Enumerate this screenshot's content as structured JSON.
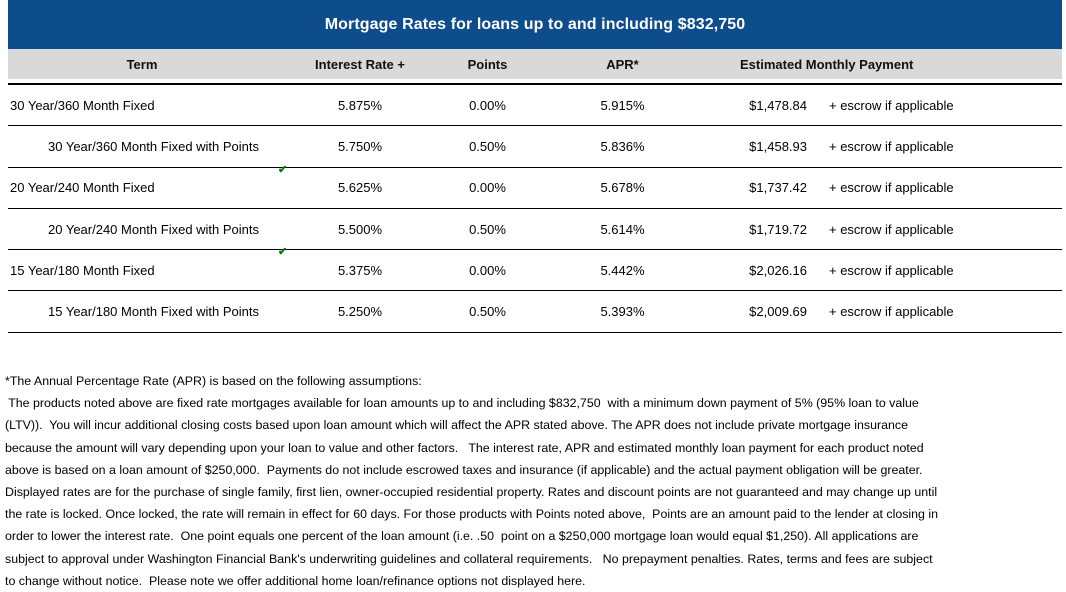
{
  "title": "Mortgage Rates for loans up to and including $832,750",
  "colors": {
    "title_bar": "#0E4D8C",
    "title_text": "#FFFFFF",
    "header_row": "#D9D9D9",
    "grid_lines": "#000000",
    "flag_marker": "#008000"
  },
  "table": {
    "headers": {
      "term": "Term",
      "rate": "Interest Rate +",
      "points": "Points",
      "apr": "APR*",
      "payment": "Estimated Monthly Payment"
    },
    "rows": [
      {
        "term": "30 Year/360 Month Fixed",
        "rate": "5.875%",
        "points": "0.00%",
        "apr": "5.915%",
        "payment": "$1,478.84",
        "escrow": "+ escrow if applicable"
      },
      {
        "term": "30 Year/360 Month Fixed with Points",
        "rate": "5.750%",
        "points": "0.50%",
        "apr": "5.836%",
        "payment": "$1,458.93",
        "escrow": "+ escrow if applicable"
      },
      {
        "term": "20 Year/240 Month Fixed",
        "rate": "5.625%",
        "points": "0.00%",
        "apr": "5.678%",
        "payment": "$1,737.42",
        "escrow": "+ escrow if applicable"
      },
      {
        "term": "20 Year/240 Month Fixed with Points",
        "rate": "5.500%",
        "points": "0.50%",
        "apr": "5.614%",
        "payment": "$1,719.72",
        "escrow": "+ escrow if applicable"
      },
      {
        "term": "15 Year/180 Month Fixed",
        "rate": "5.375%",
        "points": "0.00%",
        "apr": "5.442%",
        "payment": "$2,026.16",
        "escrow": "+ escrow if applicable"
      },
      {
        "term": "15 Year/180 Month Fixed with Points",
        "rate": "5.250%",
        "points": "0.50%",
        "apr": "5.393%",
        "payment": "$2,009.69",
        "escrow": "+ escrow if applicable"
      }
    ]
  },
  "footnote": {
    "lines": [
      "*The Annual Percentage Rate (APR) is based on the following assumptions:",
      " The products noted above are fixed rate mortgages available for loan amounts up to and including $832,750  with a minimum down payment of 5% (95% loan to value",
      "(LTV)).  You will incur additional closing costs based upon loan amount which will affect the APR stated above. The APR does not include private mortgage insurance",
      "because the amount will vary depending upon your loan to value and other factors.   The interest rate, APR and estimated monthly loan payment for each product noted",
      "above is based on a loan amount of $250,000.  Payments do not include escrowed taxes and insurance (if applicable) and the actual payment obligation will be greater.",
      "Displayed rates are for the purchase of single family, first lien, owner-occupied residential property. Rates and discount points are not guaranteed and may change up until",
      "the rate is locked. Once locked, the rate will remain in effect for 60 days. For those products with Points noted above,  Points are an amount paid to the lender at closing in",
      "order to lower the interest rate.  One point equals one percent of the loan amount (i.e. .50  point on a $250,000 mortgage loan would equal $1,250). All applications are",
      "subject to approval under Washington Financial Bank's underwriting guidelines and collateral requirements.   No prepayment penalties. Rates, terms and fees are subject",
      "to change without notice.  Please note we offer additional home loan/refinance options not displayed here."
    ]
  }
}
